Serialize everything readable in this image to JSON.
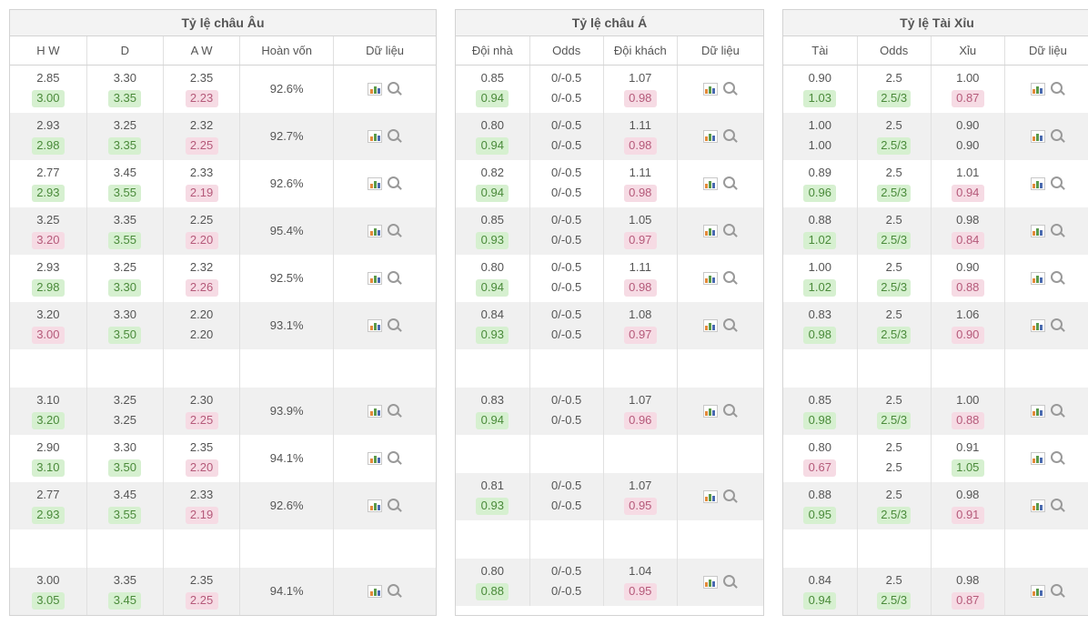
{
  "colors": {
    "border": "#d3d3d3",
    "cell_border": "#e0e0e0",
    "stripe_bg": "#f0f0f0",
    "text": "#555555",
    "up_bg": "#d6f0d0",
    "up_text": "#4a8a3a",
    "down_bg": "#f6dbe4",
    "down_text": "#b55a7a"
  },
  "panels": {
    "europe": {
      "title": "Tỷ lệ châu Âu",
      "headers": [
        "H W",
        "D",
        "A W",
        "Hoàn vốn",
        "Dữ liệu"
      ],
      "rows": [
        {
          "blank": false,
          "striped": false,
          "hw": [
            "2.85",
            "3.00"
          ],
          "hw_c": [
            "plain",
            "up"
          ],
          "d": [
            "3.30",
            "3.35"
          ],
          "d_c": [
            "plain",
            "up"
          ],
          "aw": [
            "2.35",
            "2.23"
          ],
          "aw_c": [
            "plain",
            "down"
          ],
          "ret": "92.6%"
        },
        {
          "blank": false,
          "striped": true,
          "hw": [
            "2.93",
            "2.98"
          ],
          "hw_c": [
            "plain",
            "up"
          ],
          "d": [
            "3.25",
            "3.35"
          ],
          "d_c": [
            "plain",
            "up"
          ],
          "aw": [
            "2.32",
            "2.25"
          ],
          "aw_c": [
            "plain",
            "down"
          ],
          "ret": "92.7%"
        },
        {
          "blank": false,
          "striped": false,
          "hw": [
            "2.77",
            "2.93"
          ],
          "hw_c": [
            "plain",
            "up"
          ],
          "d": [
            "3.45",
            "3.55"
          ],
          "d_c": [
            "plain",
            "up"
          ],
          "aw": [
            "2.33",
            "2.19"
          ],
          "aw_c": [
            "plain",
            "down"
          ],
          "ret": "92.6%"
        },
        {
          "blank": false,
          "striped": true,
          "hw": [
            "3.25",
            "3.20"
          ],
          "hw_c": [
            "plain",
            "down"
          ],
          "d": [
            "3.35",
            "3.55"
          ],
          "d_c": [
            "plain",
            "up"
          ],
          "aw": [
            "2.25",
            "2.20"
          ],
          "aw_c": [
            "plain",
            "down"
          ],
          "ret": "95.4%"
        },
        {
          "blank": false,
          "striped": false,
          "hw": [
            "2.93",
            "2.98"
          ],
          "hw_c": [
            "plain",
            "up"
          ],
          "d": [
            "3.25",
            "3.30"
          ],
          "d_c": [
            "plain",
            "up"
          ],
          "aw": [
            "2.32",
            "2.26"
          ],
          "aw_c": [
            "plain",
            "down"
          ],
          "ret": "92.5%"
        },
        {
          "blank": false,
          "striped": true,
          "hw": [
            "3.20",
            "3.00"
          ],
          "hw_c": [
            "plain",
            "down"
          ],
          "d": [
            "3.30",
            "3.50"
          ],
          "d_c": [
            "plain",
            "up"
          ],
          "aw": [
            "2.20",
            "2.20"
          ],
          "aw_c": [
            "plain",
            "plain"
          ],
          "ret": "93.1%"
        },
        {
          "blank": true
        },
        {
          "blank": false,
          "striped": true,
          "hw": [
            "3.10",
            "3.20"
          ],
          "hw_c": [
            "plain",
            "up"
          ],
          "d": [
            "3.25",
            "3.25"
          ],
          "d_c": [
            "plain",
            "plain"
          ],
          "aw": [
            "2.30",
            "2.25"
          ],
          "aw_c": [
            "plain",
            "down"
          ],
          "ret": "93.9%"
        },
        {
          "blank": false,
          "striped": false,
          "hw": [
            "2.90",
            "3.10"
          ],
          "hw_c": [
            "plain",
            "up"
          ],
          "d": [
            "3.30",
            "3.50"
          ],
          "d_c": [
            "plain",
            "up"
          ],
          "aw": [
            "2.35",
            "2.20"
          ],
          "aw_c": [
            "plain",
            "down"
          ],
          "ret": "94.1%"
        },
        {
          "blank": false,
          "striped": true,
          "hw": [
            "2.77",
            "2.93"
          ],
          "hw_c": [
            "plain",
            "up"
          ],
          "d": [
            "3.45",
            "3.55"
          ],
          "d_c": [
            "plain",
            "up"
          ],
          "aw": [
            "2.33",
            "2.19"
          ],
          "aw_c": [
            "plain",
            "down"
          ],
          "ret": "92.6%"
        },
        {
          "blank": true
        },
        {
          "blank": false,
          "striped": true,
          "hw": [
            "3.00",
            "3.05"
          ],
          "hw_c": [
            "plain",
            "up"
          ],
          "d": [
            "3.35",
            "3.45"
          ],
          "d_c": [
            "plain",
            "up"
          ],
          "aw": [
            "2.35",
            "2.25"
          ],
          "aw_c": [
            "plain",
            "down"
          ],
          "ret": "94.1%"
        }
      ]
    },
    "asia": {
      "title": "Tỷ lệ châu Á",
      "headers": [
        "Đội nhà",
        "Odds",
        "Đội khách",
        "Dữ liệu"
      ],
      "rows": [
        {
          "blank": false,
          "striped": false,
          "home": [
            "0.85",
            "0.94"
          ],
          "home_c": [
            "plain",
            "up"
          ],
          "odds": [
            "0/-0.5",
            "0/-0.5"
          ],
          "odds_c": [
            "plain",
            "plain"
          ],
          "away": [
            "1.07",
            "0.98"
          ],
          "away_c": [
            "plain",
            "down"
          ]
        },
        {
          "blank": false,
          "striped": true,
          "home": [
            "0.80",
            "0.94"
          ],
          "home_c": [
            "plain",
            "up"
          ],
          "odds": [
            "0/-0.5",
            "0/-0.5"
          ],
          "odds_c": [
            "plain",
            "plain"
          ],
          "away": [
            "1.11",
            "0.98"
          ],
          "away_c": [
            "plain",
            "down"
          ]
        },
        {
          "blank": false,
          "striped": false,
          "home": [
            "0.82",
            "0.94"
          ],
          "home_c": [
            "plain",
            "up"
          ],
          "odds": [
            "0/-0.5",
            "0/-0.5"
          ],
          "odds_c": [
            "plain",
            "plain"
          ],
          "away": [
            "1.11",
            "0.98"
          ],
          "away_c": [
            "plain",
            "down"
          ]
        },
        {
          "blank": false,
          "striped": true,
          "home": [
            "0.85",
            "0.93"
          ],
          "home_c": [
            "plain",
            "up"
          ],
          "odds": [
            "0/-0.5",
            "0/-0.5"
          ],
          "odds_c": [
            "plain",
            "plain"
          ],
          "away": [
            "1.05",
            "0.97"
          ],
          "away_c": [
            "plain",
            "down"
          ]
        },
        {
          "blank": false,
          "striped": false,
          "home": [
            "0.80",
            "0.94"
          ],
          "home_c": [
            "plain",
            "up"
          ],
          "odds": [
            "0/-0.5",
            "0/-0.5"
          ],
          "odds_c": [
            "plain",
            "plain"
          ],
          "away": [
            "1.11",
            "0.98"
          ],
          "away_c": [
            "plain",
            "down"
          ]
        },
        {
          "blank": false,
          "striped": true,
          "home": [
            "0.84",
            "0.93"
          ],
          "home_c": [
            "plain",
            "up"
          ],
          "odds": [
            "0/-0.5",
            "0/-0.5"
          ],
          "odds_c": [
            "plain",
            "plain"
          ],
          "away": [
            "1.08",
            "0.97"
          ],
          "away_c": [
            "plain",
            "down"
          ]
        },
        {
          "blank": true
        },
        {
          "blank": false,
          "striped": true,
          "home": [
            "0.83",
            "0.94"
          ],
          "home_c": [
            "plain",
            "up"
          ],
          "odds": [
            "0/-0.5",
            "0/-0.5"
          ],
          "odds_c": [
            "plain",
            "plain"
          ],
          "away": [
            "1.07",
            "0.96"
          ],
          "away_c": [
            "plain",
            "down"
          ]
        },
        {
          "blank": true
        },
        {
          "blank": false,
          "striped": true,
          "home": [
            "0.81",
            "0.93"
          ],
          "home_c": [
            "plain",
            "up"
          ],
          "odds": [
            "0/-0.5",
            "0/-0.5"
          ],
          "odds_c": [
            "plain",
            "plain"
          ],
          "away": [
            "1.07",
            "0.95"
          ],
          "away_c": [
            "plain",
            "down"
          ]
        },
        {
          "blank": true
        },
        {
          "blank": false,
          "striped": true,
          "home": [
            "0.80",
            "0.88"
          ],
          "home_c": [
            "plain",
            "up"
          ],
          "odds": [
            "0/-0.5",
            "0/-0.5"
          ],
          "odds_c": [
            "plain",
            "plain"
          ],
          "away": [
            "1.04",
            "0.95"
          ],
          "away_c": [
            "plain",
            "down"
          ]
        }
      ]
    },
    "ou": {
      "title": "Tỷ lệ Tài Xỉu",
      "headers": [
        "Tài",
        "Odds",
        "Xỉu",
        "Dữ liệu"
      ],
      "rows": [
        {
          "blank": false,
          "striped": false,
          "over": [
            "0.90",
            "1.03"
          ],
          "over_c": [
            "plain",
            "up"
          ],
          "odds": [
            "2.5",
            "2.5/3"
          ],
          "odds_c": [
            "plain",
            "up"
          ],
          "under": [
            "1.00",
            "0.87"
          ],
          "under_c": [
            "plain",
            "down"
          ]
        },
        {
          "blank": false,
          "striped": true,
          "over": [
            "1.00",
            "1.00"
          ],
          "over_c": [
            "plain",
            "plain"
          ],
          "odds": [
            "2.5",
            "2.5/3"
          ],
          "odds_c": [
            "plain",
            "up"
          ],
          "under": [
            "0.90",
            "0.90"
          ],
          "under_c": [
            "plain",
            "plain"
          ]
        },
        {
          "blank": false,
          "striped": false,
          "over": [
            "0.89",
            "0.96"
          ],
          "over_c": [
            "plain",
            "up"
          ],
          "odds": [
            "2.5",
            "2.5/3"
          ],
          "odds_c": [
            "plain",
            "up"
          ],
          "under": [
            "1.01",
            "0.94"
          ],
          "under_c": [
            "plain",
            "down"
          ]
        },
        {
          "blank": false,
          "striped": true,
          "over": [
            "0.88",
            "1.02"
          ],
          "over_c": [
            "plain",
            "up"
          ],
          "odds": [
            "2.5",
            "2.5/3"
          ],
          "odds_c": [
            "plain",
            "up"
          ],
          "under": [
            "0.98",
            "0.84"
          ],
          "under_c": [
            "plain",
            "down"
          ]
        },
        {
          "blank": false,
          "striped": false,
          "over": [
            "1.00",
            "1.02"
          ],
          "over_c": [
            "plain",
            "up"
          ],
          "odds": [
            "2.5",
            "2.5/3"
          ],
          "odds_c": [
            "plain",
            "up"
          ],
          "under": [
            "0.90",
            "0.88"
          ],
          "under_c": [
            "plain",
            "down"
          ]
        },
        {
          "blank": false,
          "striped": true,
          "over": [
            "0.83",
            "0.98"
          ],
          "over_c": [
            "plain",
            "up"
          ],
          "odds": [
            "2.5",
            "2.5/3"
          ],
          "odds_c": [
            "plain",
            "up"
          ],
          "under": [
            "1.06",
            "0.90"
          ],
          "under_c": [
            "plain",
            "down"
          ]
        },
        {
          "blank": true
        },
        {
          "blank": false,
          "striped": true,
          "over": [
            "0.85",
            "0.98"
          ],
          "over_c": [
            "plain",
            "up"
          ],
          "odds": [
            "2.5",
            "2.5/3"
          ],
          "odds_c": [
            "plain",
            "up"
          ],
          "under": [
            "1.00",
            "0.88"
          ],
          "under_c": [
            "plain",
            "down"
          ]
        },
        {
          "blank": false,
          "striped": false,
          "over": [
            "0.80",
            "0.67"
          ],
          "over_c": [
            "plain",
            "down"
          ],
          "odds": [
            "2.5",
            "2.5"
          ],
          "odds_c": [
            "plain",
            "plain"
          ],
          "under": [
            "0.91",
            "1.05"
          ],
          "under_c": [
            "plain",
            "up"
          ]
        },
        {
          "blank": false,
          "striped": true,
          "over": [
            "0.88",
            "0.95"
          ],
          "over_c": [
            "plain",
            "up"
          ],
          "odds": [
            "2.5",
            "2.5/3"
          ],
          "odds_c": [
            "plain",
            "up"
          ],
          "under": [
            "0.98",
            "0.91"
          ],
          "under_c": [
            "plain",
            "down"
          ]
        },
        {
          "blank": true
        },
        {
          "blank": false,
          "striped": true,
          "over": [
            "0.84",
            "0.94"
          ],
          "over_c": [
            "plain",
            "up"
          ],
          "odds": [
            "2.5",
            "2.5/3"
          ],
          "odds_c": [
            "plain",
            "up"
          ],
          "under": [
            "0.98",
            "0.87"
          ],
          "under_c": [
            "plain",
            "down"
          ]
        }
      ]
    }
  }
}
